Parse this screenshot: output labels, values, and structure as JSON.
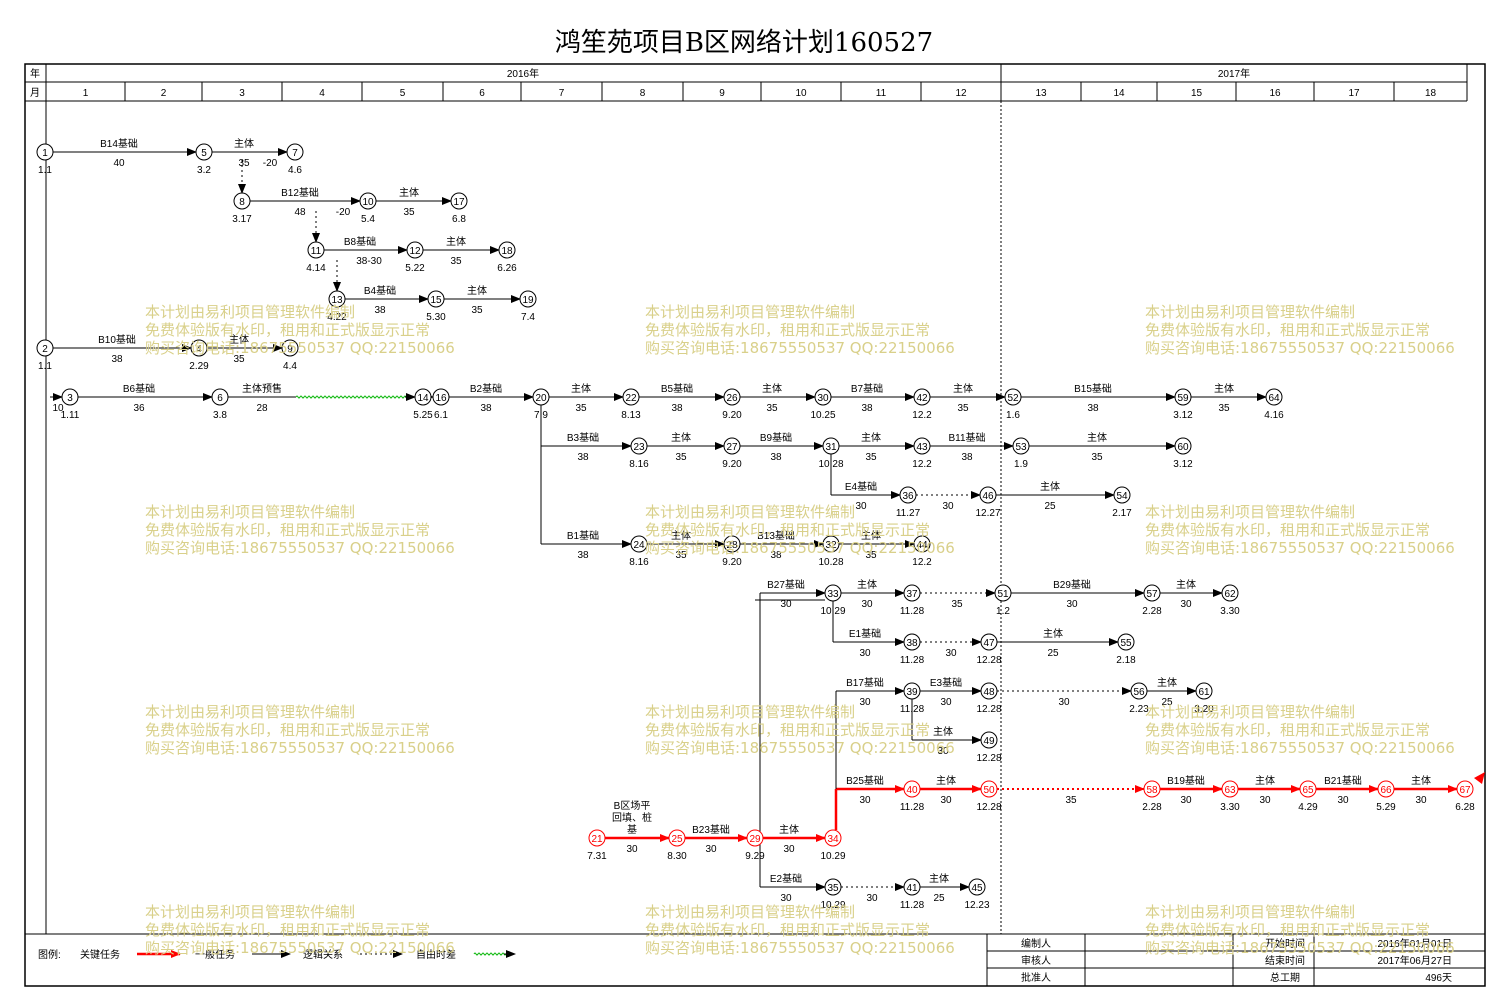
{
  "title": "鸿笙苑项目B区网络计划160527",
  "header": {
    "year_label": "年",
    "month_label": "月",
    "years": [
      "2016年",
      "2017年"
    ],
    "months": [
      "1",
      "2",
      "3",
      "4",
      "5",
      "6",
      "7",
      "8",
      "9",
      "10",
      "11",
      "12",
      "13",
      "14",
      "15",
      "16",
      "17",
      "18"
    ]
  },
  "nodes": [
    {
      "id": "1",
      "date": "1.1"
    },
    {
      "id": "5",
      "date": "3.2"
    },
    {
      "id": "7",
      "date": "4.6"
    },
    {
      "id": "8",
      "date": "3.17"
    },
    {
      "id": "10",
      "date": "5.4"
    },
    {
      "id": "17",
      "date": "6.8"
    },
    {
      "id": "11",
      "date": "4.14"
    },
    {
      "id": "12",
      "date": "5.22"
    },
    {
      "id": "18",
      "date": "6.26"
    },
    {
      "id": "13",
      "date": "4.22"
    },
    {
      "id": "15",
      "date": "5.30"
    },
    {
      "id": "19",
      "date": "7.4"
    },
    {
      "id": "2",
      "date": "1.1"
    },
    {
      "id": "4",
      "date": "2.29"
    },
    {
      "id": "9",
      "date": "4.4"
    },
    {
      "id": "3",
      "date": "1.11"
    },
    {
      "id": "6",
      "date": "3.8"
    },
    {
      "id": "14",
      "date": "5.25"
    },
    {
      "id": "16",
      "date": "6.1"
    },
    {
      "id": "20",
      "date": "7.9"
    },
    {
      "id": "22",
      "date": "8.13"
    },
    {
      "id": "26",
      "date": "9.20"
    },
    {
      "id": "30",
      "date": "10.25"
    },
    {
      "id": "42",
      "date": "12.2"
    },
    {
      "id": "52",
      "date": "1.6"
    },
    {
      "id": "59",
      "date": "3.12"
    },
    {
      "id": "64",
      "date": "4.16"
    },
    {
      "id": "23",
      "date": "8.16"
    },
    {
      "id": "27",
      "date": "9.20"
    },
    {
      "id": "31",
      "date": "10.28"
    },
    {
      "id": "43",
      "date": "12.2"
    },
    {
      "id": "53",
      "date": "1.9"
    },
    {
      "id": "60",
      "date": "3.12"
    },
    {
      "id": "36",
      "date": "11.27"
    },
    {
      "id": "46",
      "date": "12.27"
    },
    {
      "id": "54",
      "date": "2.17"
    },
    {
      "id": "24",
      "date": "8.16"
    },
    {
      "id": "28",
      "date": "9.20"
    },
    {
      "id": "32",
      "date": "10.28"
    },
    {
      "id": "44",
      "date": "12.2"
    },
    {
      "id": "33",
      "date": "10.29"
    },
    {
      "id": "37",
      "date": "11.28"
    },
    {
      "id": "51",
      "date": "1.2"
    },
    {
      "id": "57",
      "date": "2.28"
    },
    {
      "id": "62",
      "date": "3.30"
    },
    {
      "id": "38",
      "date": "11.28"
    },
    {
      "id": "47",
      "date": "12.28"
    },
    {
      "id": "55",
      "date": "2.18"
    },
    {
      "id": "39",
      "date": "11.28"
    },
    {
      "id": "48",
      "date": "12.28"
    },
    {
      "id": "56",
      "date": "2.23"
    },
    {
      "id": "61",
      "date": "3.20"
    },
    {
      "id": "49",
      "date": "12.28"
    },
    {
      "id": "40",
      "date": "11.28"
    },
    {
      "id": "50",
      "date": "12.28"
    },
    {
      "id": "58",
      "date": "2.28"
    },
    {
      "id": "63",
      "date": "3.30"
    },
    {
      "id": "65",
      "date": "4.29"
    },
    {
      "id": "66",
      "date": "5.29"
    },
    {
      "id": "67",
      "date": "6.28"
    },
    {
      "id": "21",
      "date": "7.31"
    },
    {
      "id": "25",
      "date": "8.30"
    },
    {
      "id": "29",
      "date": "9.29"
    },
    {
      "id": "34",
      "date": "10.29"
    },
    {
      "id": "35",
      "date": "10.29"
    },
    {
      "id": "41",
      "date": "11.28"
    },
    {
      "id": "45",
      "date": "12.23"
    }
  ],
  "activity_labels": [
    {
      "name": "B14基础",
      "dur": "40"
    },
    {
      "name": "主体",
      "dur": "35"
    },
    {
      "name": "",
      "dur": "-20"
    },
    {
      "name": "B12基础",
      "dur": "48"
    },
    {
      "name": "",
      "dur": "-20"
    },
    {
      "name": "主体",
      "dur": "35"
    },
    {
      "name": "B8基础",
      "dur": "38-30"
    },
    {
      "name": "主体",
      "dur": "35"
    },
    {
      "name": "B4基础",
      "dur": "38"
    },
    {
      "name": "主体",
      "dur": "35"
    },
    {
      "name": "B10基础",
      "dur": "38"
    },
    {
      "name": "主体",
      "dur": "35"
    },
    {
      "name": "",
      "dur": "10"
    },
    {
      "name": "B6基础",
      "dur": "36"
    },
    {
      "name": "主体预售",
      "dur": "28"
    },
    {
      "name": "B2基础",
      "dur": "38"
    },
    {
      "name": "主体",
      "dur": "35"
    },
    {
      "name": "B5基础",
      "dur": "38"
    },
    {
      "name": "主体",
      "dur": "35"
    },
    {
      "name": "B7基础",
      "dur": "38"
    },
    {
      "name": "主体",
      "dur": "35"
    },
    {
      "name": "B15基础",
      "dur": "38"
    },
    {
      "name": "主体",
      "dur": "35"
    },
    {
      "name": "B3基础",
      "dur": "38"
    },
    {
      "name": "主体",
      "dur": "35"
    },
    {
      "name": "B9基础",
      "dur": "38"
    },
    {
      "name": "主体",
      "dur": "35"
    },
    {
      "name": "B11基础",
      "dur": "38"
    },
    {
      "name": "主体",
      "dur": "35"
    },
    {
      "name": "E4基础",
      "dur": "30"
    },
    {
      "name": "",
      "dur": "30"
    },
    {
      "name": "主体",
      "dur": "25"
    },
    {
      "name": "B1基础",
      "dur": "38"
    },
    {
      "name": "主体",
      "dur": "35"
    },
    {
      "name": "B13基础",
      "dur": "38"
    },
    {
      "name": "主体",
      "dur": "35"
    },
    {
      "name": "B27基础",
      "dur": "30"
    },
    {
      "name": "主体",
      "dur": "30"
    },
    {
      "name": "",
      "dur": "35"
    },
    {
      "name": "B29基础",
      "dur": "30"
    },
    {
      "name": "主体",
      "dur": "30"
    },
    {
      "name": "E1基础",
      "dur": "30"
    },
    {
      "name": "",
      "dur": "30"
    },
    {
      "name": "主体",
      "dur": "25"
    },
    {
      "name": "B17基础",
      "dur": "30"
    },
    {
      "name": "E3基础",
      "dur": "30"
    },
    {
      "name": "",
      "dur": "30"
    },
    {
      "name": "主体",
      "dur": "25"
    },
    {
      "name": "主体",
      "dur": "30"
    },
    {
      "name": "B25基础",
      "dur": "30"
    },
    {
      "name": "主体",
      "dur": "30"
    },
    {
      "name": "",
      "dur": "35"
    },
    {
      "name": "B19基础",
      "dur": "30"
    },
    {
      "name": "主体",
      "dur": "30"
    },
    {
      "name": "B21基础",
      "dur": "30"
    },
    {
      "name": "主体",
      "dur": "30"
    },
    {
      "name": "B区场平",
      "dur": ""
    },
    {
      "name": "回填、桩",
      "dur": ""
    },
    {
      "name": "基",
      "dur": "30"
    },
    {
      "name": "B23基础",
      "dur": "30"
    },
    {
      "name": "主体",
      "dur": "30"
    },
    {
      "name": "E2基础",
      "dur": "30"
    },
    {
      "name": "",
      "dur": "30"
    },
    {
      "name": "主体",
      "dur": "25"
    }
  ],
  "legend": {
    "title": "图例:",
    "items": [
      "关键任务",
      "一般任务",
      "逻辑关系",
      "自由时差"
    ]
  },
  "info_table": {
    "editor_label": "编制人",
    "editor_value": "",
    "reviewer_label": "审核人",
    "reviewer_value": "",
    "approver_label": "批准人",
    "approver_value": "",
    "start_label": "开始时间",
    "start_value": "2016年01月01日",
    "end_label": "结束时间",
    "end_value": "2017年06月27日",
    "duration_label": "总工期",
    "duration_value": "496天"
  },
  "watermark": {
    "line1": "本计划由易利项目管理软件编制",
    "line2": "免费体验版有水印，租用和正式版显示正常",
    "line3": "购买咨询电话:18675550537 QQ:22150066"
  },
  "colors": {
    "critical": "#ff0000",
    "normal": "#000000",
    "free_float": "#00b400",
    "watermark": "#d9d08a"
  }
}
